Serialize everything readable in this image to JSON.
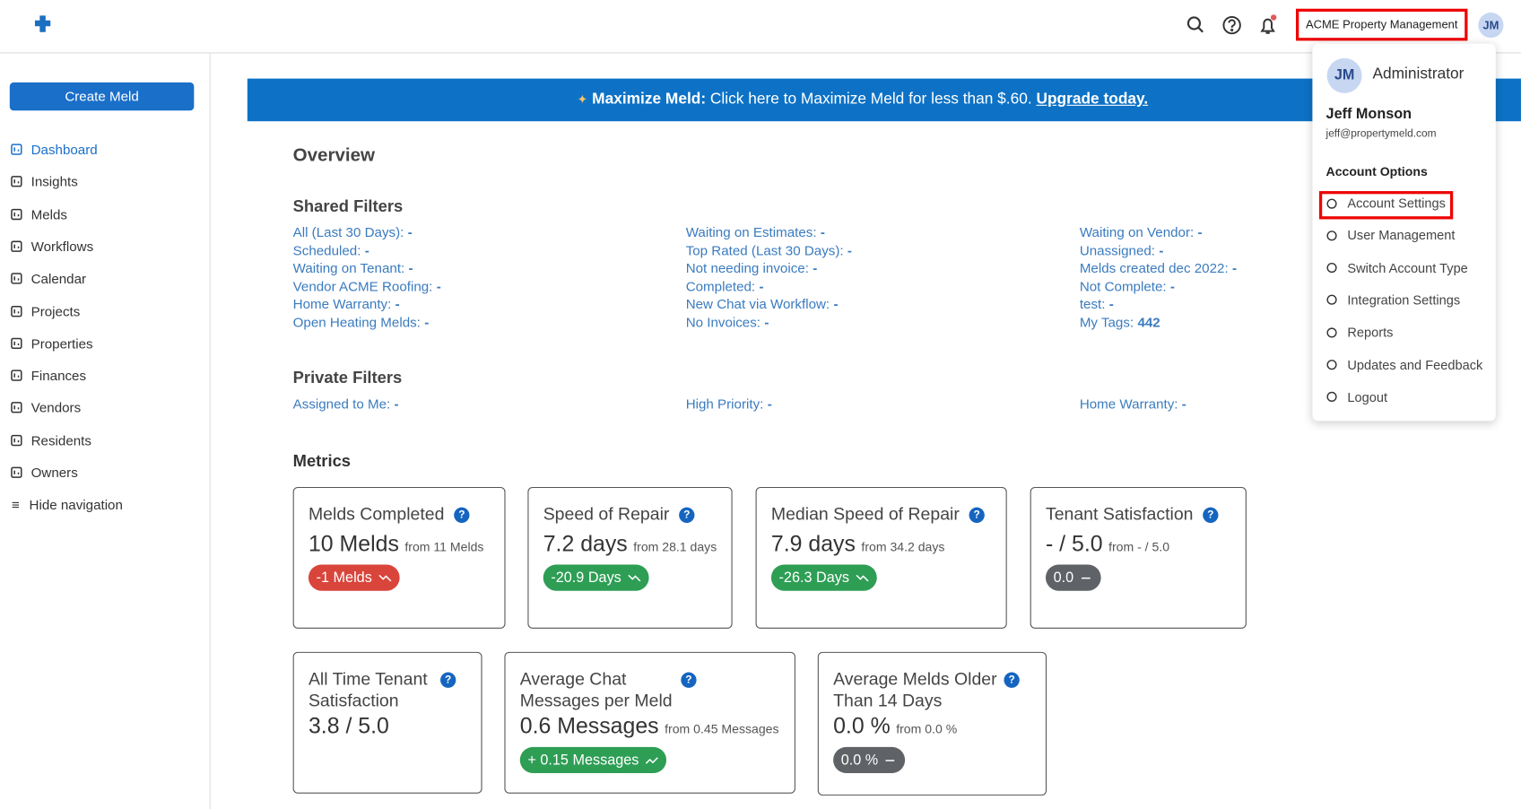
{
  "header": {
    "org": "ACME Property Management",
    "avatar": "JM"
  },
  "sidebar": {
    "create": "Create Meld",
    "nav": [
      "Dashboard",
      "Insights",
      "Melds",
      "Workflows",
      "Calendar",
      "Projects",
      "Properties",
      "Finances",
      "Vendors",
      "Residents",
      "Owners"
    ],
    "hide": "Hide navigation"
  },
  "banner": {
    "bold": "Maximize Meld:",
    "text": "Click here to Maximize Meld for less than $.60.",
    "link": "Upgrade today."
  },
  "overview": "Overview",
  "shared": {
    "title": "Shared Filters",
    "columns": [
      [
        {
          "label": "All (Last 30 Days):",
          "value": "-"
        },
        {
          "label": "Scheduled:",
          "value": "-"
        },
        {
          "label": "Waiting on Tenant:",
          "value": "-"
        },
        {
          "label": "Vendor ACME Roofing:",
          "value": "-"
        },
        {
          "label": "Home Warranty:",
          "value": "-"
        },
        {
          "label": "Open Heating Melds:",
          "value": "-"
        }
      ],
      [
        {
          "label": "Waiting on Estimates:",
          "value": "-"
        },
        {
          "label": "Top Rated (Last 30 Days):",
          "value": "-"
        },
        {
          "label": "Not needing invoice:",
          "value": "-"
        },
        {
          "label": "Completed:",
          "value": "-"
        },
        {
          "label": "New Chat via Workflow:",
          "value": "-"
        },
        {
          "label": "No Invoices:",
          "value": "-"
        }
      ],
      [
        {
          "label": "Waiting on Vendor:",
          "value": "-"
        },
        {
          "label": "Unassigned:",
          "value": "-"
        },
        {
          "label": "Melds created dec 2022:",
          "value": "-"
        },
        {
          "label": "Not Complete:",
          "value": "-"
        },
        {
          "label": "test:",
          "value": "-"
        },
        {
          "label": "My Tags:",
          "value": "442"
        }
      ]
    ]
  },
  "private": {
    "title": "Private Filters",
    "columns": [
      [
        {
          "label": "Assigned to Me:",
          "value": "-"
        }
      ],
      [
        {
          "label": "High Priority:",
          "value": "-"
        }
      ],
      [
        {
          "label": "Home Warranty:",
          "value": "-"
        }
      ]
    ]
  },
  "metrics": {
    "title": "Metrics",
    "cards": [
      {
        "title": "Melds Completed",
        "value": "10 Melds",
        "from": "from 11 Melds",
        "change": "-1 Melds",
        "color": "#d9453b",
        "trend": "down"
      },
      {
        "title": "Speed of Repair",
        "value": "7.2 days",
        "from": "from 28.1 days",
        "change": "-20.9 Days",
        "color": "#2e9e55",
        "trend": "down"
      },
      {
        "title": "Median Speed of Repair",
        "value": "7.9 days",
        "from": "from 34.2 days",
        "change": "-26.3 Days",
        "color": "#2e9e55",
        "trend": "down"
      },
      {
        "title": "Tenant Satisfaction",
        "value": "- / 5.0",
        "from": "from - / 5.0",
        "change": "0.0",
        "color": "#5f6266",
        "trend": "flat"
      },
      {
        "title": "All Time Tenant Satisfaction",
        "value": "3.8 / 5.0"
      },
      {
        "title": "Average Chat Messages per Meld",
        "value": "0.6 Messages",
        "from": "from 0.45 Messages",
        "change": "+ 0.15 Messages",
        "color": "#2e9e55",
        "trend": "up"
      },
      {
        "title": "Average Melds Older Than 14 Days",
        "value": "0.0 %",
        "from": "from 0.0 %",
        "change": "0.0 %",
        "color": "#5f6266",
        "trend": "flat"
      }
    ]
  },
  "menu": {
    "avatar": "JM",
    "role": "Administrator",
    "name": "Jeff Monson",
    "email": "jeff@propertymeld.com",
    "section": "Account Options",
    "items": [
      "Account Settings",
      "User Management",
      "Switch Account Type",
      "Integration Settings",
      "Reports",
      "Updates and Feedback",
      "Logout"
    ]
  }
}
